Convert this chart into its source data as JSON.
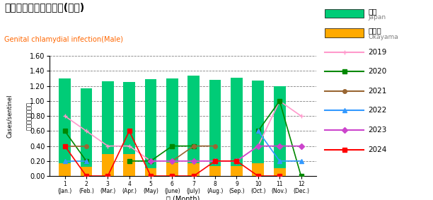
{
  "title_jp": "性器クラミジア感染症(男性)",
  "title_en": "Genital chlamydial infection(Male)",
  "xlabel": "月 (Month)",
  "ylabel_jp": "定点当たり新患数",
  "ylabel_en": "Cases/sentinel",
  "month_labels": [
    "1\n(Jan.)",
    "2\n(Feb.)",
    "3\n(Mar.)",
    "4\n(Apr.)",
    "5\n(May)",
    "6\n(June)",
    "7\n(July)",
    "8\n(Aug.)",
    "9\n(Sep.)",
    "10\n(Oct.)",
    "11\n(Nov.)",
    "12\n(Dec.)"
  ],
  "japan_bars": [
    1.3,
    1.17,
    1.26,
    1.25,
    1.29,
    1.3,
    1.34,
    1.28,
    1.31,
    1.27,
    1.2,
    0.0
  ],
  "okayama_bars": [
    0.17,
    0.12,
    0.29,
    0.29,
    0.1,
    0.18,
    0.17,
    0.13,
    0.13,
    0.17,
    0.1,
    0.0
  ],
  "bar_color_japan": "#00cc77",
  "bar_color_okayama": "#ffaa00",
  "line_2019": [
    0.8,
    0.6,
    0.4,
    0.4,
    0.2,
    0.2,
    0.2,
    0.2,
    0.2,
    0.4,
    1.0,
    0.8
  ],
  "line_2020": [
    0.6,
    0.2,
    null,
    0.2,
    0.2,
    0.4,
    0.4,
    null,
    null,
    0.6,
    1.0,
    0.0
  ],
  "line_2021": [
    0.4,
    0.4,
    null,
    null,
    null,
    0.2,
    0.4,
    0.4,
    null,
    null,
    null,
    null
  ],
  "line_2022": [
    0.2,
    0.2,
    null,
    null,
    null,
    null,
    null,
    null,
    null,
    0.6,
    0.2,
    0.2
  ],
  "line_2023": [
    null,
    null,
    null,
    null,
    0.2,
    0.2,
    0.2,
    0.2,
    0.2,
    0.4,
    0.4,
    0.4
  ],
  "line_2024": [
    0.4,
    0.0,
    0.0,
    0.6,
    0.0,
    0.0,
    0.0,
    0.2,
    0.2,
    0.0,
    0.0,
    null
  ],
  "color_2019": "#ff99cc",
  "color_2020": "#008800",
  "color_2021": "#996633",
  "color_2022": "#3399ff",
  "color_2023": "#cc44cc",
  "color_2024": "#ff0000",
  "marker_2019": "+",
  "marker_2020": "s",
  "marker_2021": "o",
  "marker_2022": "^",
  "marker_2023": "D",
  "marker_2024": "s",
  "ylim": [
    0.0,
    1.6
  ],
  "yticks": [
    0.0,
    0.2,
    0.4,
    0.6,
    0.8,
    1.0,
    1.2,
    1.4,
    1.6
  ],
  "title_color": "#000000",
  "subtitle_color": "#ff6600",
  "legend_jp_label": [
    "全国",
    "岡山県"
  ],
  "legend_en_label": [
    "Japan",
    "Okayama"
  ],
  "legend_years": [
    "2019",
    "2020",
    "2021",
    "2022",
    "2023",
    "2024"
  ]
}
